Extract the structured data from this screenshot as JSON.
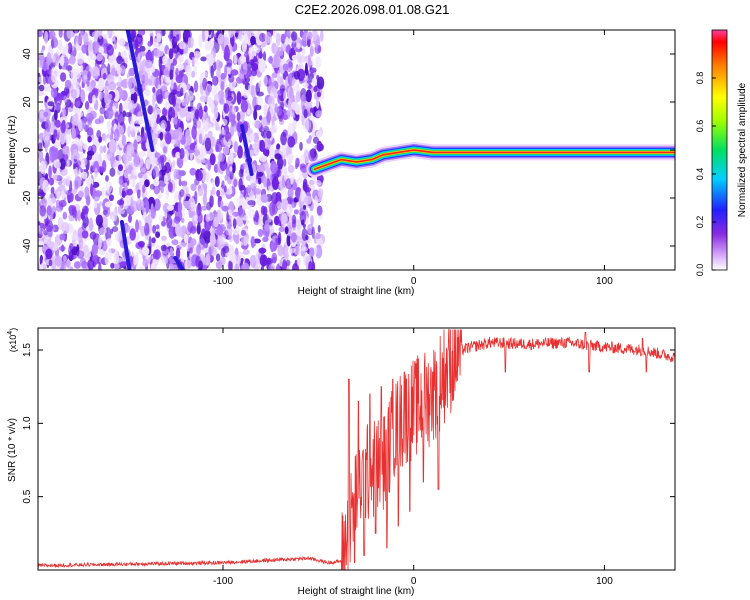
{
  "title": "C2E2.2026.098.01.08.G21",
  "chart_data": [
    {
      "type": "heatmap",
      "xlabel": "Height of straight line (km)",
      "ylabel": "Frequency (Hz)",
      "xlim": [
        -197,
        137
      ],
      "ylim": [
        -50,
        50
      ],
      "xticks": [
        -100,
        0,
        100
      ],
      "xtick_labels": [
        "-100",
        "0",
        "100"
      ],
      "yticks": [
        -40,
        -20,
        0,
        20,
        40
      ],
      "ytick_labels": [
        "-40",
        "-20",
        "0",
        "20",
        "40"
      ],
      "noise_region_x": [
        -197,
        -48
      ],
      "signal_line": [
        {
          "x": -52,
          "y": -8
        },
        {
          "x": -45,
          "y": -6
        },
        {
          "x": -38,
          "y": -4
        },
        {
          "x": -30,
          "y": -5
        },
        {
          "x": -22,
          "y": -4
        },
        {
          "x": -16,
          "y": -2
        },
        {
          "x": -8,
          "y": -1
        },
        {
          "x": 0,
          "y": 0
        },
        {
          "x": 10,
          "y": -1
        },
        {
          "x": 30,
          "y": -1
        },
        {
          "x": 60,
          "y": -1
        },
        {
          "x": 100,
          "y": -1
        },
        {
          "x": 137,
          "y": -1
        }
      ],
      "streaks": [
        {
          "x1": -150,
          "y1": 50,
          "x2": -137,
          "y2": 0
        },
        {
          "x1": -153,
          "y1": -30,
          "x2": -149,
          "y2": -50
        },
        {
          "x1": -125,
          "y1": -45,
          "x2": -121,
          "y2": -50
        },
        {
          "x1": -90,
          "y1": 10,
          "x2": -85,
          "y2": -10
        }
      ],
      "colorbar": {
        "label": "Normalized spectral amplitude",
        "range": [
          0,
          1
        ],
        "ticks": [
          0.0,
          0.2,
          0.4,
          0.6,
          0.8
        ],
        "tick_labels": [
          "0.0",
          "0.2",
          "0.4",
          "0.6",
          "0.8"
        ]
      }
    },
    {
      "type": "line",
      "xlabel": "Height of straight line (km)",
      "ylabel": "SNR (10 * v/v)",
      "y_multiplier": "(x10",
      "y_multiplier_exp": "4",
      "y_multiplier_close": ")",
      "xlim": [
        -197,
        137
      ],
      "ylim": [
        0,
        1.65
      ],
      "xticks": [
        -100,
        0,
        100
      ],
      "xtick_labels": [
        "-100",
        "0",
        "100"
      ],
      "yticks": [
        0.5,
        1.0,
        1.5
      ],
      "ytick_labels": [
        "0.5",
        "1.0",
        "1.5"
      ],
      "color": "#e83030",
      "envelope": [
        {
          "x": -197,
          "y": 0.03
        },
        {
          "x": -150,
          "y": 0.04
        },
        {
          "x": -100,
          "y": 0.05
        },
        {
          "x": -70,
          "y": 0.07
        },
        {
          "x": -55,
          "y": 0.08
        },
        {
          "x": -45,
          "y": 0.05
        },
        {
          "x": -38,
          "y": 0.06
        },
        {
          "x": -35,
          "y": 0.2
        },
        {
          "x": -30,
          "y": 0.55
        },
        {
          "x": -25,
          "y": 0.65
        },
        {
          "x": -20,
          "y": 0.7
        },
        {
          "x": -15,
          "y": 0.75
        },
        {
          "x": -10,
          "y": 0.95
        },
        {
          "x": -5,
          "y": 1.05
        },
        {
          "x": 0,
          "y": 1.1
        },
        {
          "x": 5,
          "y": 1.15
        },
        {
          "x": 10,
          "y": 1.2
        },
        {
          "x": 15,
          "y": 1.32
        },
        {
          "x": 20,
          "y": 1.42
        },
        {
          "x": 25,
          "y": 1.5
        },
        {
          "x": 30,
          "y": 1.52
        },
        {
          "x": 40,
          "y": 1.55
        },
        {
          "x": 60,
          "y": 1.54
        },
        {
          "x": 80,
          "y": 1.55
        },
        {
          "x": 100,
          "y": 1.52
        },
        {
          "x": 120,
          "y": 1.5
        },
        {
          "x": 137,
          "y": 1.45
        }
      ],
      "spikes": [
        {
          "x": -34,
          "y": 1.3
        },
        {
          "x": -31,
          "y": 0.05
        },
        {
          "x": -29,
          "y": 1.15
        },
        {
          "x": -26,
          "y": 0.1
        },
        {
          "x": -23,
          "y": 1.2
        },
        {
          "x": -20,
          "y": 0.25
        },
        {
          "x": -17,
          "y": 1.25
        },
        {
          "x": -14,
          "y": 0.15
        },
        {
          "x": -11,
          "y": 1.3
        },
        {
          "x": -8,
          "y": 0.3
        },
        {
          "x": -5,
          "y": 1.35
        },
        {
          "x": -2,
          "y": 0.4
        },
        {
          "x": 5,
          "y": 0.6
        },
        {
          "x": 10,
          "y": 1.35
        },
        {
          "x": 13,
          "y": 0.55
        },
        {
          "x": 18,
          "y": 1.5
        },
        {
          "x": 48,
          "y": 1.35
        },
        {
          "x": 90,
          "y": 1.62
        },
        {
          "x": 92,
          "y": 1.35
        },
        {
          "x": 120,
          "y": 1.58
        },
        {
          "x": 122,
          "y": 1.35
        }
      ]
    }
  ]
}
